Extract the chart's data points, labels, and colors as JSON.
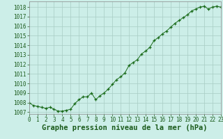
{
  "x": [
    0,
    0.5,
    1,
    1.5,
    2,
    2.5,
    3,
    3.5,
    4,
    4.5,
    5,
    5.5,
    6,
    6.5,
    7,
    7.5,
    8,
    8.5,
    9,
    9.5,
    10,
    10.5,
    11,
    11.5,
    12,
    12.5,
    13,
    13.5,
    14,
    14.5,
    15,
    15.5,
    16,
    16.5,
    17,
    17.5,
    18,
    18.5,
    19,
    19.5,
    20,
    20.5,
    21,
    21.5,
    22,
    22.5,
    23
  ],
  "y": [
    1008.0,
    1007.7,
    1007.6,
    1007.5,
    1007.4,
    1007.5,
    1007.3,
    1007.1,
    1007.1,
    1007.2,
    1007.3,
    1007.9,
    1008.3,
    1008.6,
    1008.6,
    1009.0,
    1008.3,
    1008.7,
    1009.0,
    1009.4,
    1009.9,
    1010.4,
    1010.7,
    1011.1,
    1011.9,
    1012.2,
    1012.5,
    1013.1,
    1013.4,
    1013.8,
    1014.5,
    1014.8,
    1015.2,
    1015.5,
    1015.9,
    1016.3,
    1016.6,
    1016.9,
    1017.2,
    1017.6,
    1017.8,
    1018.0,
    1018.1,
    1017.8,
    1018.0,
    1018.1,
    1018.0
  ],
  "line_color": "#1a6b1a",
  "marker_color": "#1a6b1a",
  "bg_color": "#cceee8",
  "grid_color": "#a8ccc4",
  "title": "Graphe pression niveau de la mer (hPa)",
  "xlim": [
    0,
    23
  ],
  "ylim": [
    1006.8,
    1018.6
  ],
  "yticks": [
    1007,
    1008,
    1009,
    1010,
    1011,
    1012,
    1013,
    1014,
    1015,
    1016,
    1017,
    1018
  ],
  "xticks": [
    0,
    1,
    2,
    3,
    4,
    5,
    6,
    7,
    8,
    9,
    10,
    11,
    12,
    13,
    14,
    15,
    16,
    17,
    18,
    19,
    20,
    21,
    22,
    23
  ],
  "tick_fontsize": 5.5,
  "title_fontsize": 7.5,
  "spine_color": "#888888"
}
